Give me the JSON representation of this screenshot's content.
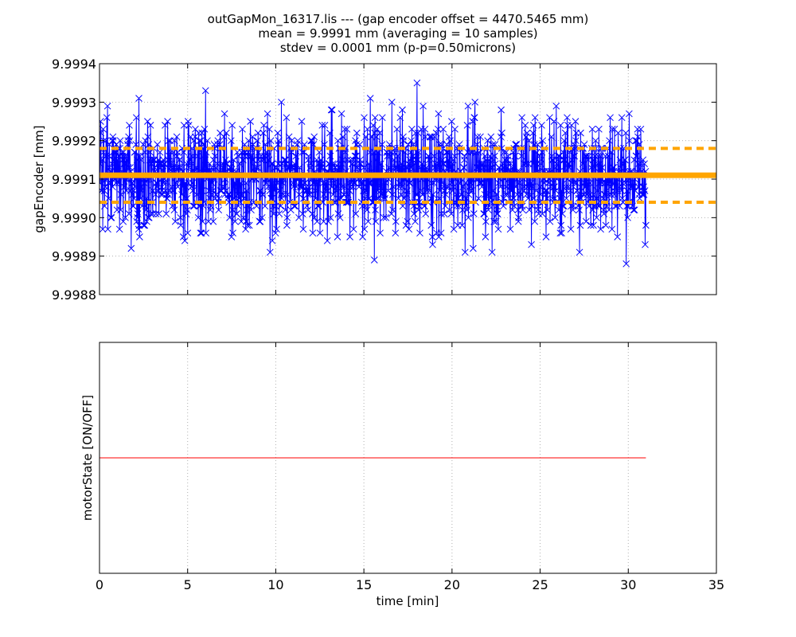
{
  "chart_data": [
    {
      "type": "line",
      "title_lines": [
        "outGapMon_16317.lis --- (gap encoder offset = 4470.5465 mm)",
        "mean = 9.9991 mm (averaging = 10 samples)",
        "stdev = 0.0001 mm (p-p=0.50microns)"
      ],
      "xlabel": "",
      "ylabel": "gapEncoder [mm]",
      "xlim": [
        0,
        35
      ],
      "ylim": [
        9.9988,
        9.9994
      ],
      "xticks": [
        0,
        5,
        10,
        15,
        20,
        25,
        30,
        35
      ],
      "yticks": [
        "9.9988",
        "9.9989",
        "9.9990",
        "9.9991",
        "9.9992",
        "9.9993",
        "9.9994"
      ],
      "grid": true,
      "series": [
        {
          "name": "gapEncoder",
          "color": "#0000ff",
          "marker": "x",
          "x_range": [
            0,
            31
          ],
          "samples": 1500,
          "mean": 9.99911,
          "stdev": 0.0001,
          "min": 9.99885,
          "max": 9.99935
        },
        {
          "name": "mean",
          "color": "#ffa500",
          "style": "solid",
          "y": 9.99911,
          "x_range": [
            0,
            35
          ]
        },
        {
          "name": "mean + stdev",
          "color": "#ffa500",
          "style": "dashed",
          "y": 9.99918,
          "x_range": [
            0,
            35
          ]
        },
        {
          "name": "mean - stdev",
          "color": "#ffa500",
          "style": "dashed",
          "y": 9.99904,
          "x_range": [
            0,
            35
          ]
        }
      ]
    },
    {
      "type": "line",
      "xlabel": "time [min]",
      "ylabel": "motorState [ON/OFF]",
      "xlim": [
        0,
        35
      ],
      "ylim": [
        -1,
        1
      ],
      "xticks": [
        0,
        5,
        10,
        15,
        20,
        25,
        30,
        35
      ],
      "grid": true,
      "series": [
        {
          "name": "motorState",
          "color": "#ff0000",
          "x": [
            0,
            31
          ],
          "y": [
            0,
            0
          ]
        }
      ]
    }
  ]
}
